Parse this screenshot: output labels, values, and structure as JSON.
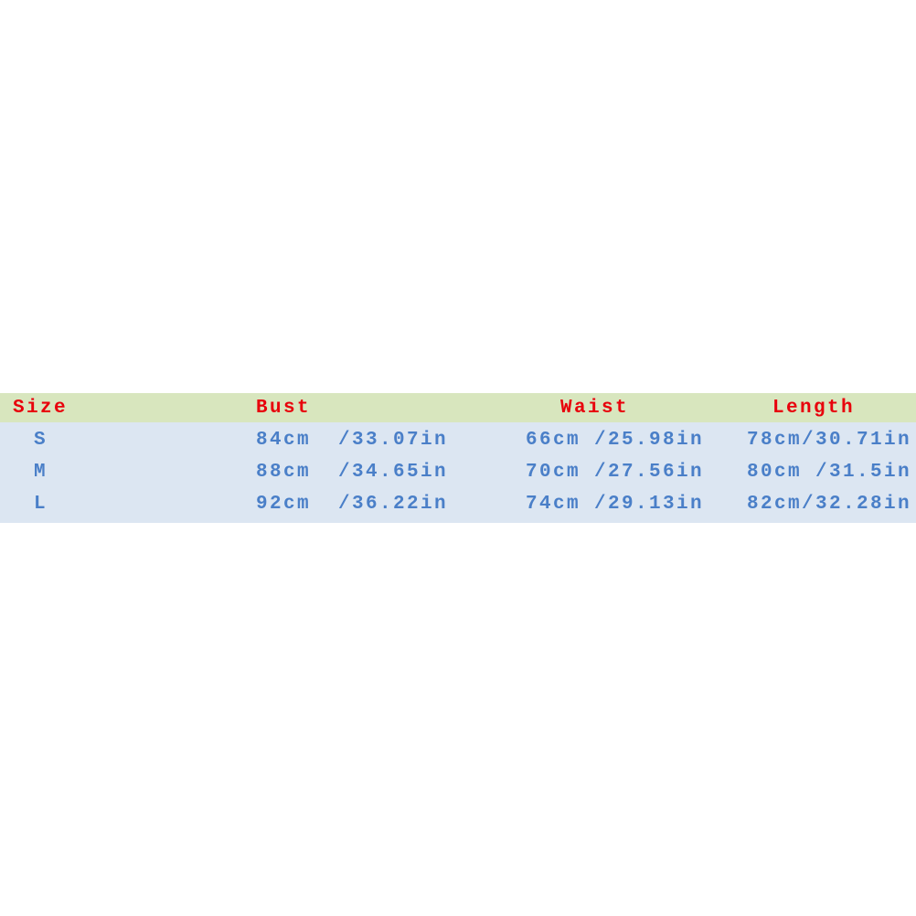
{
  "table": {
    "headers": [
      "Size",
      "Bust",
      "Waist",
      "Length"
    ],
    "rows": [
      [
        "S",
        "84cm  /33.07in",
        "66cm /25.98in",
        "78cm/30.71in"
      ],
      [
        "M",
        "88cm  /34.65in",
        "70cm /27.56in",
        "80cm /31.5in"
      ],
      [
        "L",
        "92cm  /36.22in",
        "74cm /29.13in",
        "82cm/32.28in"
      ]
    ]
  }
}
